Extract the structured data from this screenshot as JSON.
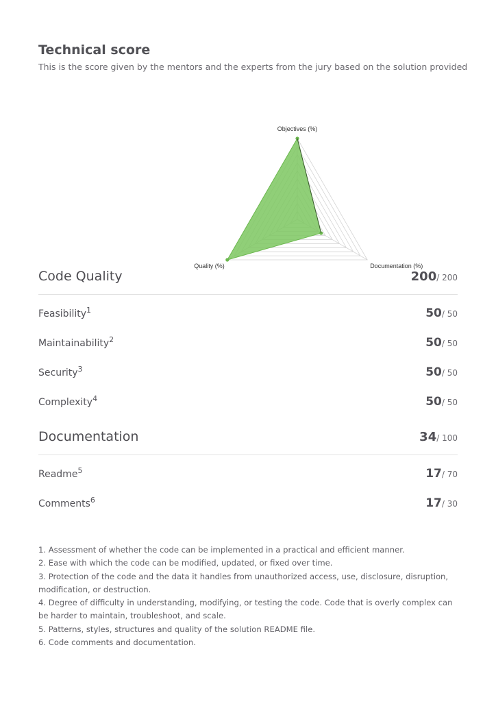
{
  "header": {
    "title": "Technical score",
    "subtitle": "This is the score given by the mentors and the experts from the jury based on the solution provided"
  },
  "chart_data": {
    "type": "radar",
    "axes": [
      "Objectives (%)",
      "Documentation (%)",
      "Quality (%)"
    ],
    "series": [
      {
        "values": [
          100,
          34,
          100
        ]
      }
    ],
    "range": [
      0,
      100
    ],
    "grid_levels": 10,
    "fill_color": "#7dc760",
    "stroke_color": "#6cb84f",
    "grid_color": "#d4d4d4"
  },
  "sections": [
    {
      "name": "Code Quality",
      "score": "200",
      "max": "/ 200",
      "rows": [
        {
          "name": "Feasibility",
          "ref": "1",
          "score": "50",
          "max": "/ 50"
        },
        {
          "name": "Maintainability",
          "ref": "2",
          "score": "50",
          "max": "/ 50"
        },
        {
          "name": "Security",
          "ref": "3",
          "score": "50",
          "max": "/ 50"
        },
        {
          "name": "Complexity",
          "ref": "4",
          "score": "50",
          "max": "/ 50"
        }
      ]
    },
    {
      "name": "Documentation",
      "score": "34",
      "max": "/ 100",
      "rows": [
        {
          "name": "Readme",
          "ref": "5",
          "score": "17",
          "max": "/ 70"
        },
        {
          "name": "Comments",
          "ref": "6",
          "score": "17",
          "max": "/ 30"
        }
      ]
    }
  ],
  "footnotes": [
    "1. Assessment of whether the code can be implemented in a practical and efficient manner.",
    "2. Ease with which the code can be modified, updated, or fixed over time.",
    "3. Protection of the code and the data it handles from unauthorized access, use, disclosure, disruption, modification, or destruction.",
    "4. Degree of difficulty in understanding, modifying, or testing the code. Code that is overly complex can be harder to maintain, troubleshoot, and scale.",
    "5. Patterns, styles, structures and quality of the solution README file.",
    "6. Code comments and documentation."
  ]
}
